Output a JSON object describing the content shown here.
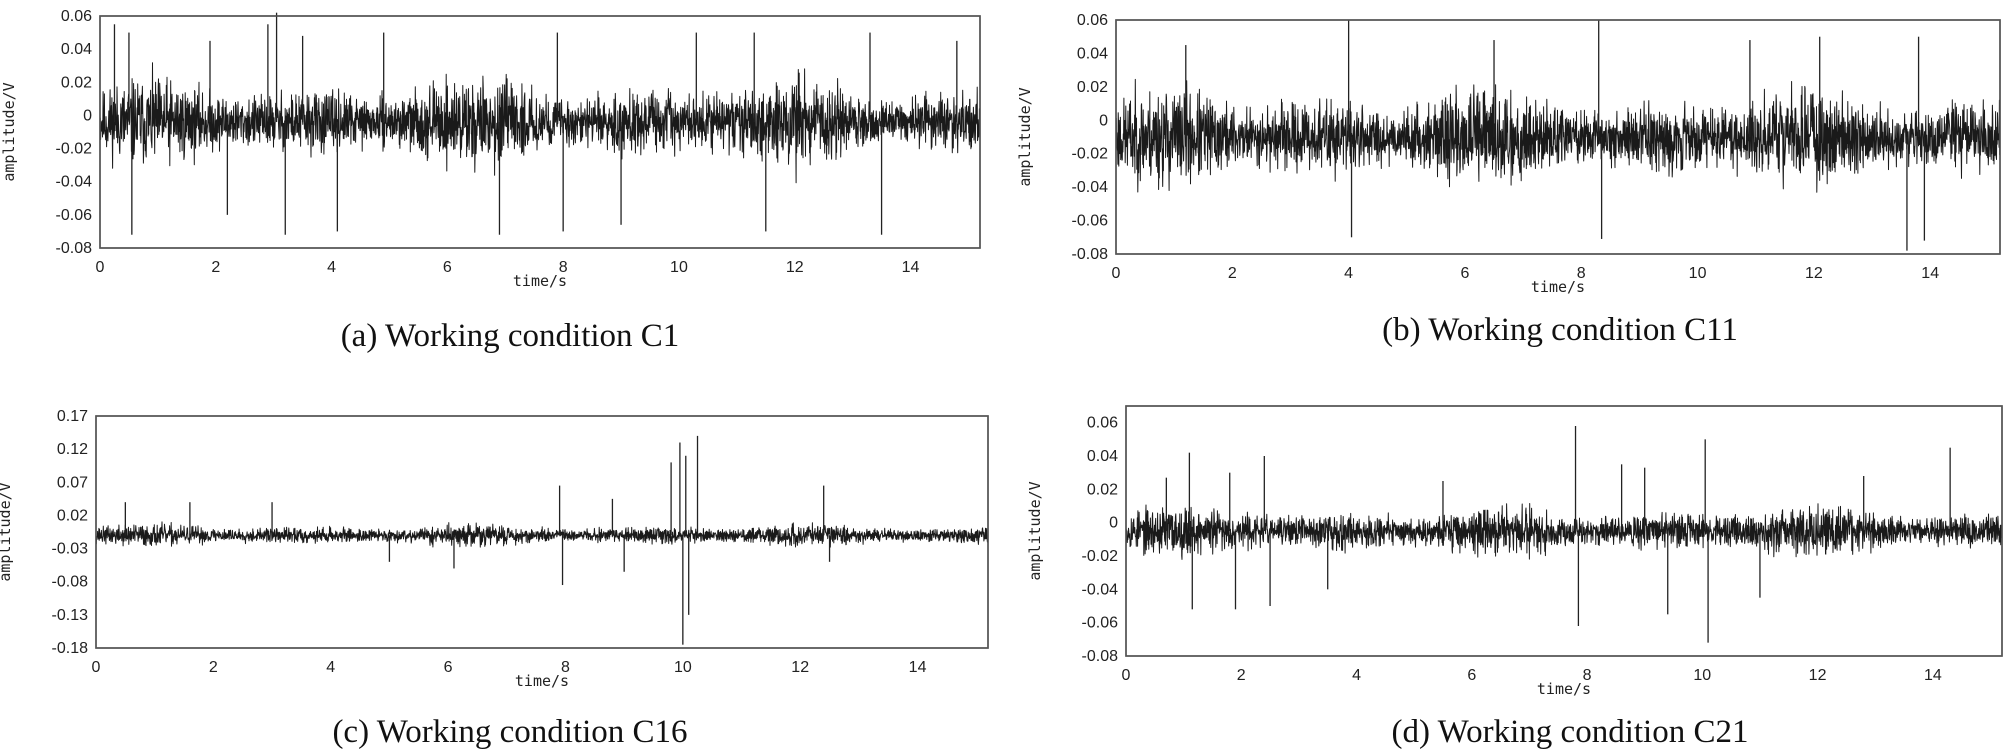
{
  "chart_data": [
    {
      "id": "a",
      "type": "line",
      "caption": "(a) Working condition C1",
      "xlabel": "time/s",
      "ylabel": "amplitude/V",
      "xlim": [
        0,
        15.2
      ],
      "ylim": [
        -0.08,
        0.06
      ],
      "xticks": [
        0,
        2,
        4,
        6,
        8,
        10,
        12,
        14
      ],
      "yticks": [
        0.06,
        0.04,
        0.02,
        0,
        -0.02,
        -0.04,
        -0.06,
        -0.08
      ],
      "ytick_labels": [
        "0.06",
        "0.04",
        "0.02",
        "0",
        "-0.02",
        "-0.04",
        "-0.06",
        "-0.08"
      ],
      "signal": {
        "envelope": 0.028,
        "offset": -0.004,
        "spikes": [
          {
            "x": 0.25,
            "y": 0.055
          },
          {
            "x": 0.5,
            "y": 0.05
          },
          {
            "x": 0.55,
            "y": -0.072
          },
          {
            "x": 1.9,
            "y": 0.045
          },
          {
            "x": 2.2,
            "y": -0.06
          },
          {
            "x": 2.9,
            "y": 0.055
          },
          {
            "x": 3.05,
            "y": 0.062
          },
          {
            "x": 3.2,
            "y": -0.072
          },
          {
            "x": 3.5,
            "y": 0.048
          },
          {
            "x": 4.1,
            "y": -0.07
          },
          {
            "x": 4.9,
            "y": 0.05
          },
          {
            "x": 6.9,
            "y": -0.072
          },
          {
            "x": 7.9,
            "y": 0.05
          },
          {
            "x": 8.0,
            "y": -0.07
          },
          {
            "x": 9.0,
            "y": -0.066
          },
          {
            "x": 10.3,
            "y": 0.05
          },
          {
            "x": 11.3,
            "y": 0.05
          },
          {
            "x": 11.5,
            "y": -0.07
          },
          {
            "x": 13.3,
            "y": 0.05
          },
          {
            "x": 13.5,
            "y": -0.072
          },
          {
            "x": 14.8,
            "y": 0.045
          }
        ]
      }
    },
    {
      "id": "b",
      "type": "line",
      "caption": "(b) Working condition C11",
      "xlabel": "time/s",
      "ylabel": "amplitude/V",
      "xlim": [
        0,
        15.2
      ],
      "ylim": [
        -0.08,
        0.06
      ],
      "xticks": [
        0,
        2,
        4,
        6,
        8,
        10,
        12,
        14
      ],
      "yticks": [
        0.06,
        0.04,
        0.02,
        0,
        -0.02,
        -0.04,
        -0.06,
        -0.08
      ],
      "ytick_labels": [
        "0.06",
        "0.04",
        "0.02",
        "0",
        "-0.02",
        "-0.04",
        "-0.06",
        "-0.08"
      ],
      "signal": {
        "envelope": 0.032,
        "offset": -0.01,
        "spikes": [
          {
            "x": 4.0,
            "y": 0.06
          },
          {
            "x": 4.05,
            "y": -0.07
          },
          {
            "x": 8.3,
            "y": 0.06
          },
          {
            "x": 8.35,
            "y": -0.071
          },
          {
            "x": 13.6,
            "y": -0.078
          },
          {
            "x": 13.9,
            "y": -0.072
          },
          {
            "x": 13.8,
            "y": 0.05
          },
          {
            "x": 1.2,
            "y": 0.045
          },
          {
            "x": 6.5,
            "y": 0.048
          },
          {
            "x": 10.9,
            "y": 0.048
          },
          {
            "x": 12.1,
            "y": 0.05
          }
        ]
      }
    },
    {
      "id": "c",
      "type": "line",
      "caption": "(c) Working condition C16",
      "xlabel": "time/s",
      "ylabel": "amplitude/V",
      "xlim": [
        0,
        15.2
      ],
      "ylim": [
        -0.18,
        0.17
      ],
      "xticks": [
        0,
        2,
        4,
        6,
        8,
        10,
        12,
        14
      ],
      "yticks": [
        0.17,
        0.12,
        0.07,
        0.02,
        -0.03,
        -0.08,
        -0.13,
        -0.18
      ],
      "ytick_labels": [
        "0.17",
        "0.12",
        "0.07",
        "0.02",
        "-0.03",
        "-0.08",
        "-0.13",
        "-0.18"
      ],
      "signal": {
        "envelope": 0.018,
        "offset": -0.01,
        "spikes": [
          {
            "x": 7.9,
            "y": 0.065
          },
          {
            "x": 7.95,
            "y": -0.085
          },
          {
            "x": 8.8,
            "y": 0.045
          },
          {
            "x": 9.0,
            "y": -0.065
          },
          {
            "x": 9.8,
            "y": 0.1
          },
          {
            "x": 9.95,
            "y": 0.13
          },
          {
            "x": 10.0,
            "y": -0.175
          },
          {
            "x": 10.05,
            "y": 0.11
          },
          {
            "x": 10.1,
            "y": -0.13
          },
          {
            "x": 10.25,
            "y": 0.14
          },
          {
            "x": 12.4,
            "y": 0.065
          },
          {
            "x": 12.5,
            "y": -0.05
          },
          {
            "x": 0.5,
            "y": 0.04
          },
          {
            "x": 1.6,
            "y": 0.04
          },
          {
            "x": 3.0,
            "y": 0.04
          },
          {
            "x": 6.1,
            "y": -0.06
          },
          {
            "x": 5.0,
            "y": -0.05
          }
        ]
      }
    },
    {
      "id": "d",
      "type": "line",
      "caption": "(d) Working condition C21",
      "xlabel": "time/s",
      "ylabel": "amplitude/V",
      "xlim": [
        0,
        15.2
      ],
      "ylim": [
        -0.08,
        0.07
      ],
      "xticks": [
        0,
        2,
        4,
        6,
        8,
        10,
        12,
        14
      ],
      "yticks": [
        0.06,
        0.04,
        0.02,
        0,
        -0.02,
        -0.04,
        -0.06,
        -0.08
      ],
      "ytick_labels": [
        "0.06",
        "0.04",
        "0.02",
        "0",
        "-0.02",
        "-0.04",
        "-0.06",
        "-0.08"
      ],
      "signal": {
        "envelope": 0.016,
        "offset": -0.005,
        "spikes": [
          {
            "x": 0.7,
            "y": 0.027
          },
          {
            "x": 1.1,
            "y": 0.042
          },
          {
            "x": 1.15,
            "y": -0.052
          },
          {
            "x": 1.8,
            "y": 0.03
          },
          {
            "x": 1.9,
            "y": -0.052
          },
          {
            "x": 2.4,
            "y": 0.04
          },
          {
            "x": 2.5,
            "y": -0.05
          },
          {
            "x": 3.5,
            "y": -0.04
          },
          {
            "x": 5.5,
            "y": 0.025
          },
          {
            "x": 7.8,
            "y": 0.058
          },
          {
            "x": 7.85,
            "y": -0.062
          },
          {
            "x": 8.6,
            "y": 0.035
          },
          {
            "x": 9.0,
            "y": 0.033
          },
          {
            "x": 9.4,
            "y": -0.055
          },
          {
            "x": 10.05,
            "y": 0.05
          },
          {
            "x": 10.1,
            "y": -0.072
          },
          {
            "x": 11.0,
            "y": -0.045
          },
          {
            "x": 14.3,
            "y": 0.045
          },
          {
            "x": 12.8,
            "y": 0.028
          }
        ]
      }
    }
  ]
}
